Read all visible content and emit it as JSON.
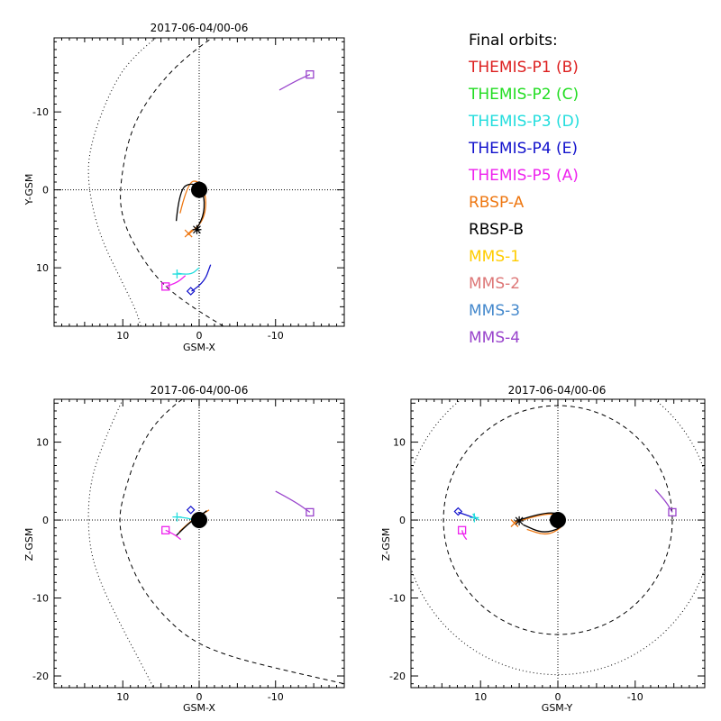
{
  "legend": {
    "title": "Final orbits:",
    "entries": [
      {
        "label": "THEMIS-P1 (B)",
        "color": "#dd1f1f"
      },
      {
        "label": "THEMIS-P2 (C)",
        "color": "#22dd22"
      },
      {
        "label": "THEMIS-P3 (D)",
        "color": "#22dddd"
      },
      {
        "label": "THEMIS-P4 (E)",
        "color": "#1111cc"
      },
      {
        "label": "THEMIS-P5 (A)",
        "color": "#ee22ee"
      },
      {
        "label": "RBSP-A",
        "color": "#ee7711"
      },
      {
        "label": "RBSP-B",
        "color": "#000000"
      },
      {
        "label": "MMS-1",
        "color": "#ffcc00"
      },
      {
        "label": "MMS-2",
        "color": "#dd7777"
      },
      {
        "label": "MMS-3",
        "color": "#4488cc"
      },
      {
        "label": "MMS-4",
        "color": "#9944cc"
      }
    ]
  },
  "chart_data": [
    {
      "id": "xy",
      "type": "line",
      "title": "2017-06-04/00-06",
      "xlabel": "GSM-X",
      "ylabel": "Y-GSM",
      "xlim": [
        19,
        -19
      ],
      "ylim": [
        17.5,
        -19.5
      ],
      "xticks": [
        10,
        0,
        -10
      ],
      "yticks": [
        -10,
        0,
        10
      ],
      "reference_curves": [
        {
          "name": "bow-shock",
          "style": "dotted",
          "points": [
            [
              5,
              -20
            ],
            [
              9,
              -17
            ],
            [
              12,
              -12
            ],
            [
              14.5,
              -5
            ],
            [
              14.5,
              0
            ],
            [
              13,
              6
            ],
            [
              10,
              12
            ],
            [
              8,
              16
            ],
            [
              7,
              20
            ]
          ]
        },
        {
          "name": "magnetopause",
          "style": "dashed",
          "points": [
            [
              -4,
              -21
            ],
            [
              0,
              -18.5
            ],
            [
              5,
              -14
            ],
            [
              9,
              -8
            ],
            [
              10.5,
              0
            ],
            [
              10,
              4
            ],
            [
              8,
              8
            ],
            [
              5,
              12
            ],
            [
              1,
              15
            ],
            [
              -4,
              18
            ]
          ]
        }
      ],
      "series": [
        {
          "name": "RBSP-A",
          "color": "#ee7711",
          "points": [
            [
              2.5,
              3
            ],
            [
              1.5,
              -1
            ],
            [
              0,
              -1.2
            ],
            [
              -1,
              1
            ],
            [
              -0.6,
              4
            ],
            [
              1.5,
              5.8
            ]
          ]
        },
        {
          "name": "RBSP-B",
          "color": "#000000",
          "points": [
            [
              3,
              4
            ],
            [
              2.6,
              0
            ],
            [
              1,
              -1
            ],
            [
              -0.6,
              0.2
            ],
            [
              -0.7,
              3
            ],
            [
              0.3,
              5
            ]
          ]
        },
        {
          "name": "THEMIS-P3 (D)",
          "color": "#22dddd",
          "points": [
            [
              2.8,
              10.7
            ],
            [
              1.2,
              11
            ],
            [
              0,
              10
            ]
          ]
        },
        {
          "name": "THEMIS-P4 (E)",
          "color": "#1111cc",
          "points": [
            [
              1,
              13
            ],
            [
              -0.6,
              12
            ],
            [
              -1.5,
              9.6
            ]
          ]
        },
        {
          "name": "THEMIS-P5 (A)",
          "color": "#ee22ee",
          "points": [
            [
              4.4,
              12.4
            ],
            [
              3,
              12
            ],
            [
              1.8,
              11
            ]
          ]
        },
        {
          "name": "MMS-4",
          "color": "#9944cc",
          "points": [
            [
              -10.5,
              -12.8
            ],
            [
              -12.5,
              -13.9
            ],
            [
              -14.5,
              -14.8
            ]
          ]
        }
      ],
      "markers": [
        {
          "name": "earth",
          "shape": "disk",
          "color": "#000000",
          "x": 0,
          "y": 0
        },
        {
          "name": "RBSP-A",
          "shape": "x",
          "color": "#ee7711",
          "x": 1.4,
          "y": 5.6
        },
        {
          "name": "RBSP-B",
          "shape": "star",
          "color": "#000000",
          "x": 0.3,
          "y": 5.1
        },
        {
          "name": "THEMIS-P3 (D)",
          "shape": "plus",
          "color": "#22dddd",
          "x": 2.9,
          "y": 10.8
        },
        {
          "name": "THEMIS-P4 (E)",
          "shape": "diamond",
          "color": "#1111cc",
          "x": 1.1,
          "y": 13
        },
        {
          "name": "THEMIS-P5 (A)",
          "shape": "square",
          "color": "#ee22ee",
          "x": 4.4,
          "y": 12.4
        },
        {
          "name": "MMS-4",
          "shape": "square",
          "color": "#9944cc",
          "x": -14.5,
          "y": -14.8
        }
      ]
    },
    {
      "id": "xz",
      "type": "line",
      "title": "2017-06-04/00-06",
      "xlabel": "GSM-X",
      "ylabel": "Z-GSM",
      "xlim": [
        19,
        -19
      ],
      "ylim": [
        -21.5,
        15.5
      ],
      "xticks": [
        10,
        0,
        -10
      ],
      "yticks": [
        -20,
        -10,
        0,
        10
      ],
      "reference_curves": [
        {
          "name": "bow-shock",
          "style": "dotted",
          "points": [
            [
              10,
              15.5
            ],
            [
              12.6,
              10
            ],
            [
              14.5,
              4
            ],
            [
              14.5,
              -3
            ],
            [
              13,
              -8
            ],
            [
              10,
              -14
            ],
            [
              7,
              -19.5
            ],
            [
              6,
              -21.5
            ]
          ]
        },
        {
          "name": "magnetopause",
          "style": "dashed",
          "points": [
            [
              2.2,
              15.5
            ],
            [
              5,
              13.5
            ],
            [
              8,
              9
            ],
            [
              10,
              3
            ],
            [
              10.5,
              0
            ],
            [
              10,
              -3
            ],
            [
              8,
              -8
            ],
            [
              5,
              -12
            ],
            [
              1,
              -15.5
            ],
            [
              -4,
              -17.5
            ],
            [
              -10,
              -19
            ],
            [
              -19,
              -21
            ]
          ]
        }
      ],
      "series": [
        {
          "name": "RBSP-A",
          "color": "#ee7711",
          "points": [
            [
              2.6,
              -1.5
            ],
            [
              1,
              0
            ],
            [
              -0.5,
              0.8
            ],
            [
              -1.3,
              1.3
            ]
          ]
        },
        {
          "name": "RBSP-B",
          "color": "#000000",
          "points": [
            [
              3,
              -2
            ],
            [
              1.5,
              -0.5
            ],
            [
              0,
              0.5
            ],
            [
              -1,
              1.2
            ]
          ]
        },
        {
          "name": "THEMIS-P3 (D)",
          "color": "#22dddd",
          "points": [
            [
              2.9,
              0.4
            ],
            [
              1.8,
              0.3
            ],
            [
              1,
              0.1
            ]
          ]
        },
        {
          "name": "THEMIS-P5 (A)",
          "color": "#ee22ee",
          "points": [
            [
              4.4,
              -1.3
            ],
            [
              3.3,
              -1.8
            ],
            [
              2.4,
              -2.5
            ]
          ]
        },
        {
          "name": "MMS-4",
          "color": "#9944cc",
          "points": [
            [
              -10,
              3.7
            ],
            [
              -12.5,
              2.4
            ],
            [
              -14.5,
              1
            ]
          ]
        }
      ],
      "markers": [
        {
          "name": "earth",
          "shape": "disk",
          "color": "#000000",
          "x": 0,
          "y": 0
        },
        {
          "name": "THEMIS-P3 (D)",
          "shape": "plus",
          "color": "#22dddd",
          "x": 2.9,
          "y": 0.4
        },
        {
          "name": "THEMIS-P4 (E)",
          "shape": "diamond",
          "color": "#1111cc",
          "x": 1.1,
          "y": 1.3
        },
        {
          "name": "THEMIS-P5 (A)",
          "shape": "square",
          "color": "#ee22ee",
          "x": 4.4,
          "y": -1.3
        },
        {
          "name": "MMS-4",
          "shape": "square",
          "color": "#9944cc",
          "x": -14.5,
          "y": 1
        }
      ]
    },
    {
      "id": "yz",
      "type": "line",
      "title": "2017-06-04/00-06",
      "xlabel": "GSM-Y",
      "ylabel": "Z-GSM",
      "xlim": [
        19,
        -19
      ],
      "ylim": [
        -21.5,
        15.5
      ],
      "xticks": [
        10,
        0,
        -10
      ],
      "yticks": [
        -20,
        -10,
        0,
        10
      ],
      "reference_curves": [
        {
          "name": "bow-shock-circle",
          "style": "dotted",
          "circle": {
            "cx": 0,
            "cy": 0,
            "r": 20
          }
        },
        {
          "name": "magnetopause-circle",
          "style": "dashed",
          "circle": {
            "cx": 0,
            "cy": 0,
            "r": 14.8
          }
        }
      ],
      "series": [
        {
          "name": "RBSP-A",
          "color": "#ee7711",
          "points": [
            [
              5.6,
              -0.3
            ],
            [
              3,
              0.5
            ],
            [
              0.5,
              0.9
            ],
            [
              -1,
              0.3
            ],
            [
              -0.5,
              -1
            ],
            [
              1.5,
              -2
            ],
            [
              4,
              -1.2
            ]
          ]
        },
        {
          "name": "RBSP-B",
          "color": "#000000",
          "points": [
            [
              5,
              0
            ],
            [
              2.5,
              0.8
            ],
            [
              0,
              1
            ],
            [
              -1,
              0
            ],
            [
              -0.3,
              -1.1
            ],
            [
              2,
              -1.7
            ],
            [
              4.5,
              -0.6
            ]
          ]
        },
        {
          "name": "THEMIS-P3 (D)",
          "color": "#22dddd",
          "points": [
            [
              11,
              0.8
            ],
            [
              10.7,
              0.3
            ],
            [
              10.2,
              0
            ]
          ]
        },
        {
          "name": "THEMIS-P4 (E)",
          "color": "#1111cc",
          "points": [
            [
              12.9,
              1
            ],
            [
              11.7,
              0.6
            ],
            [
              10.6,
              0.2
            ]
          ]
        },
        {
          "name": "THEMIS-P5 (A)",
          "color": "#ee22ee",
          "points": [
            [
              12.4,
              -1.3
            ],
            [
              12.2,
              -2
            ],
            [
              11.8,
              -2.5
            ]
          ]
        },
        {
          "name": "MMS-4",
          "color": "#9944cc",
          "points": [
            [
              -12.6,
              3.9
            ],
            [
              -13.9,
              2.5
            ],
            [
              -14.8,
              1
            ]
          ]
        }
      ],
      "markers": [
        {
          "name": "earth",
          "shape": "disk",
          "color": "#000000",
          "x": 0,
          "y": 0
        },
        {
          "name": "RBSP-A",
          "shape": "x",
          "color": "#ee7711",
          "x": 5.6,
          "y": -0.4
        },
        {
          "name": "RBSP-B",
          "shape": "star",
          "color": "#000000",
          "x": 5,
          "y": -0.1
        },
        {
          "name": "THEMIS-P3 (D)",
          "shape": "plus",
          "color": "#22dddd",
          "x": 10.8,
          "y": 0.3
        },
        {
          "name": "THEMIS-P4 (E)",
          "shape": "diamond",
          "color": "#1111cc",
          "x": 12.9,
          "y": 1.1
        },
        {
          "name": "THEMIS-P5 (A)",
          "shape": "square",
          "color": "#ee22ee",
          "x": 12.4,
          "y": -1.3
        },
        {
          "name": "MMS-4",
          "shape": "square",
          "color": "#9944cc",
          "x": -14.8,
          "y": 1
        }
      ]
    }
  ]
}
